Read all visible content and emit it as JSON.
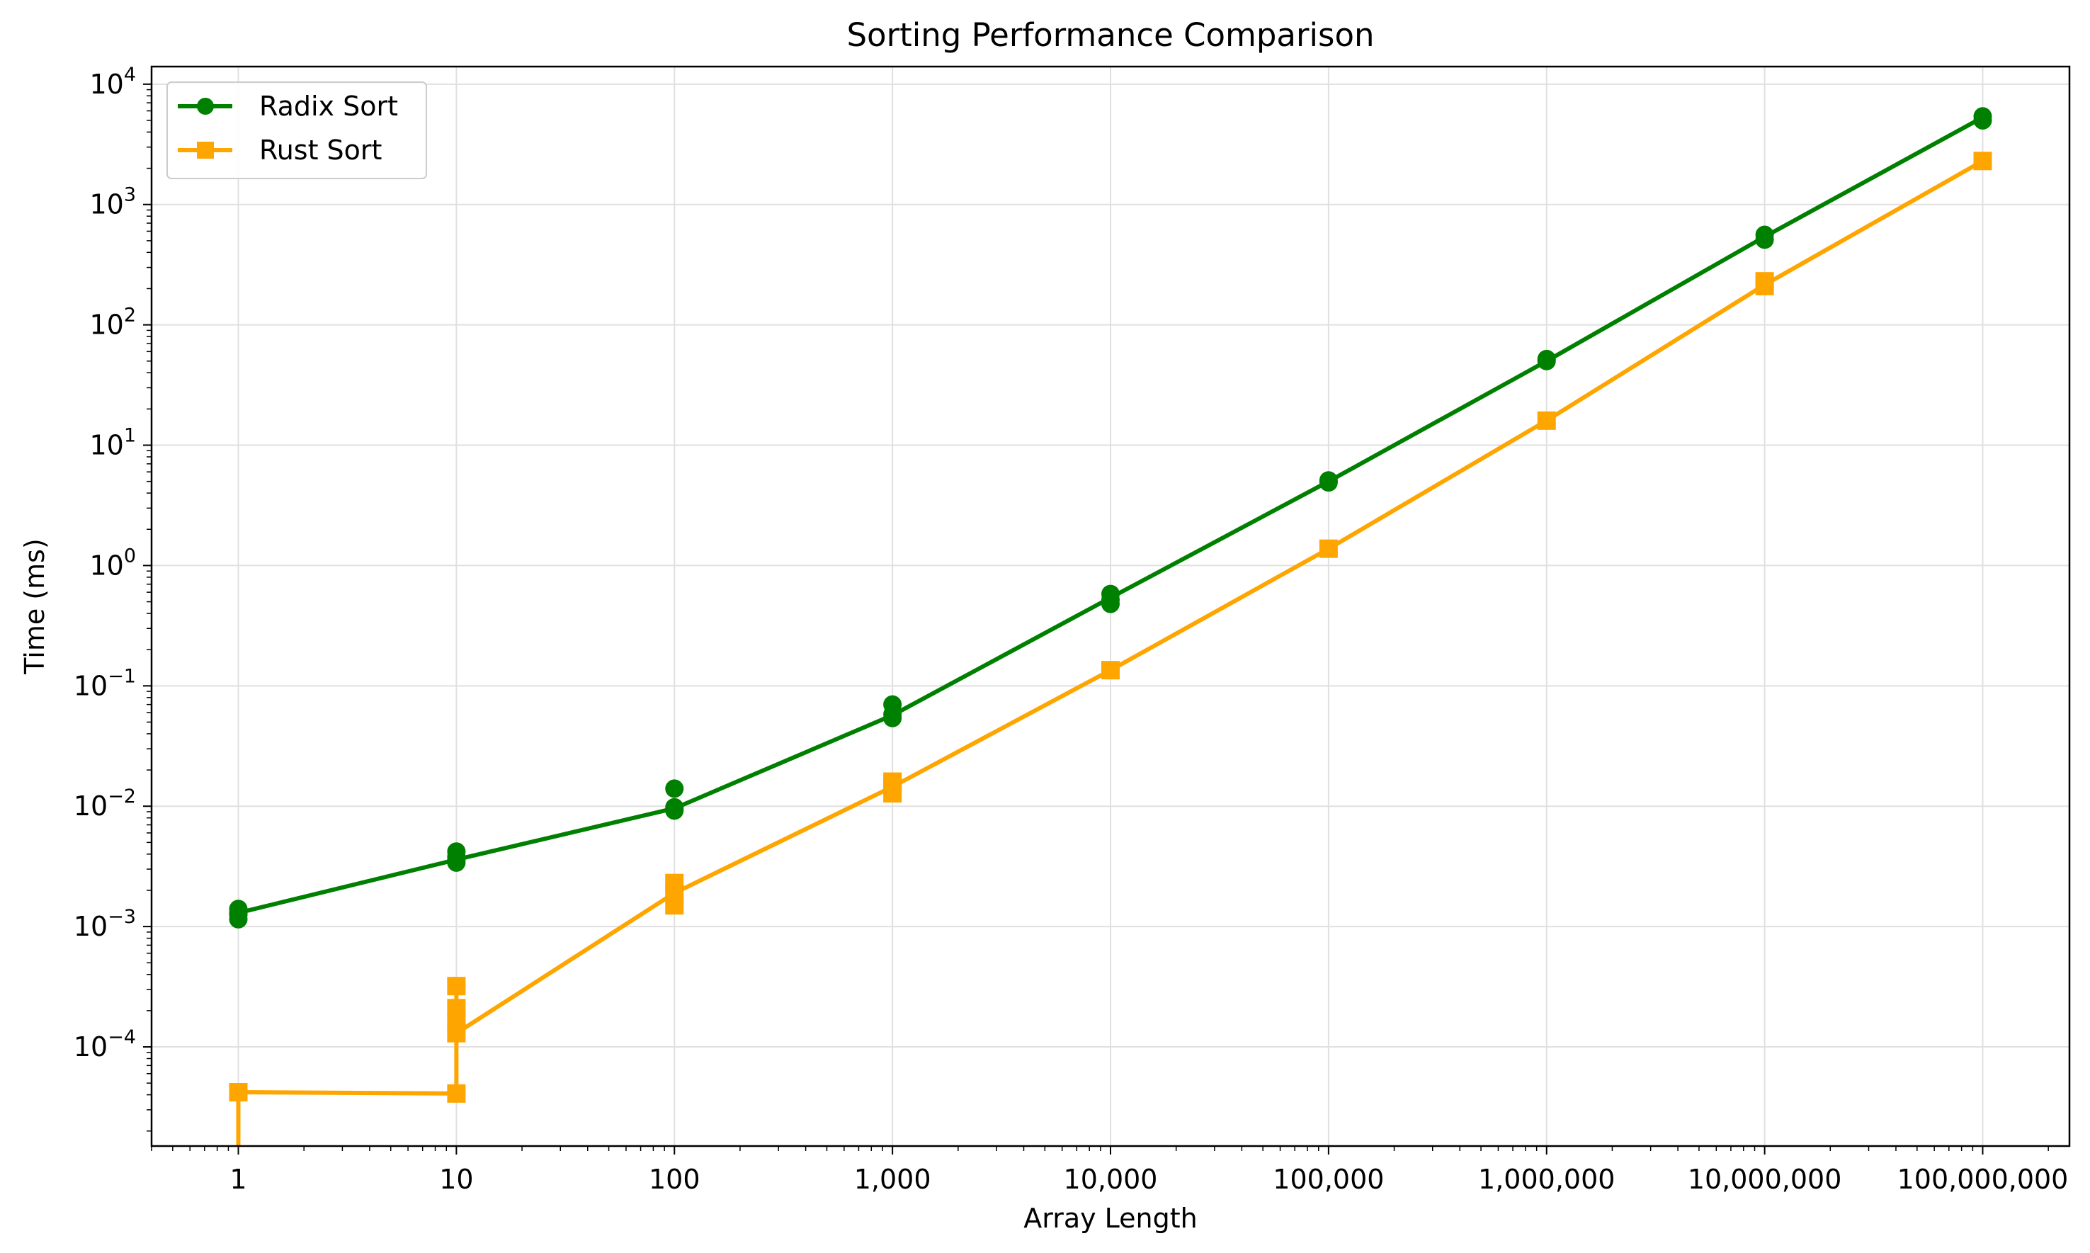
{
  "chart_data": {
    "type": "line",
    "title": "Sorting Performance Comparison",
    "xlabel": "Array Length",
    "ylabel": "Time (ms)",
    "x_scale": "log",
    "y_scale": "log",
    "xlim": [
      0.4,
      250000000
    ],
    "ylim": [
      1.5e-05,
      14000
    ],
    "grid": true,
    "legend_position": "top-left",
    "x_ticks": [
      1,
      10,
      100,
      1000,
      10000,
      100000,
      1000000,
      10000000,
      100000000
    ],
    "x_tick_labels": [
      "1",
      "10",
      "100",
      "1,000",
      "10,000",
      "100,000",
      "1,000,000",
      "10,000,000",
      "100,000,000"
    ],
    "y_ticks": [
      {
        "value": 0.0001,
        "base": "10",
        "exp": "−4"
      },
      {
        "value": 0.001,
        "base": "10",
        "exp": "−3"
      },
      {
        "value": 0.01,
        "base": "10",
        "exp": "−2"
      },
      {
        "value": 0.1,
        "base": "10",
        "exp": "−1"
      },
      {
        "value": 1,
        "base": "10",
        "exp": "0"
      },
      {
        "value": 10,
        "base": "10",
        "exp": "1"
      },
      {
        "value": 100,
        "base": "10",
        "exp": "2"
      },
      {
        "value": 1000,
        "base": "10",
        "exp": "3"
      },
      {
        "value": 10000,
        "base": "10",
        "exp": "4"
      }
    ],
    "series": [
      {
        "name": "Radix Sort",
        "color": "#008000",
        "marker": "circle",
        "line_x": [
          1,
          10,
          100,
          1000,
          10000,
          100000,
          1000000,
          10000000,
          100000000
        ],
        "line_y": [
          0.0013,
          0.0036,
          0.0096,
          0.057,
          0.54,
          5.0,
          50,
          540,
          5300
        ],
        "points": [
          [
            1,
            0.00115
          ],
          [
            1,
            0.00125
          ],
          [
            1,
            0.0014
          ],
          [
            1,
            0.0013
          ],
          [
            10,
            0.0034
          ],
          [
            10,
            0.0036
          ],
          [
            10,
            0.0042
          ],
          [
            10,
            0.0038
          ],
          [
            100,
            0.0092
          ],
          [
            100,
            0.0098
          ],
          [
            100,
            0.014
          ],
          [
            100,
            0.0095
          ],
          [
            1000,
            0.054
          ],
          [
            1000,
            0.058
          ],
          [
            1000,
            0.07
          ],
          [
            10000,
            0.48
          ],
          [
            10000,
            0.52
          ],
          [
            10000,
            0.58
          ],
          [
            100000,
            4.9
          ],
          [
            100000,
            5.1
          ],
          [
            1000000,
            50
          ],
          [
            1000000,
            52
          ],
          [
            10000000,
            510
          ],
          [
            10000000,
            560
          ],
          [
            100000000,
            5000
          ],
          [
            100000000,
            5400
          ]
        ]
      },
      {
        "name": "Rust Sort",
        "color": "#FFA500",
        "marker": "square",
        "line_x": [
          1,
          1,
          1,
          10,
          10,
          10,
          10,
          10,
          100,
          1000,
          10000,
          100000,
          1000000,
          10000000,
          100000000
        ],
        "line_y": [
          4e-06,
          4.2e-05,
          4.2e-05,
          4.1e-05,
          0.00032,
          0.00016,
          0.00013,
          0.00013,
          0.0019,
          0.0145,
          0.135,
          1.38,
          16,
          215,
          2300
        ],
        "points": [
          [
            1,
            4.2e-05
          ],
          [
            10,
            4.1e-05
          ],
          [
            10,
            0.00013
          ],
          [
            10,
            0.00016
          ],
          [
            10,
            0.00021
          ],
          [
            10,
            0.00032
          ],
          [
            100,
            0.0015
          ],
          [
            100,
            0.0019
          ],
          [
            100,
            0.0023
          ],
          [
            1000,
            0.0128
          ],
          [
            1000,
            0.0145
          ],
          [
            1000,
            0.016
          ],
          [
            10000,
            0.135
          ],
          [
            100000,
            1.38
          ],
          [
            1000000,
            16
          ],
          [
            10000000,
            210
          ],
          [
            10000000,
            230
          ],
          [
            100000000,
            2300
          ]
        ]
      }
    ]
  }
}
